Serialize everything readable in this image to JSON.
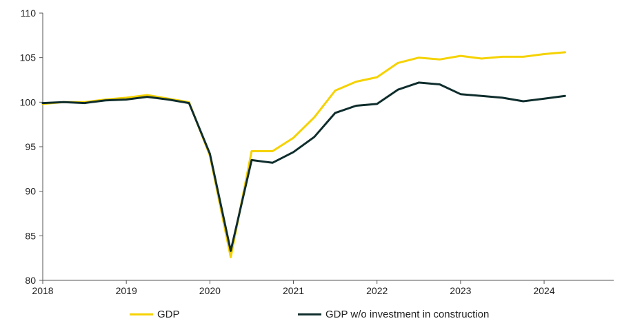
{
  "chart_data": {
    "type": "line",
    "title": "",
    "xlabel": "",
    "ylabel": "",
    "xlim": [
      2018.0,
      2024.833
    ],
    "ylim": [
      80,
      110
    ],
    "y_ticks": [
      80,
      85,
      90,
      95,
      100,
      105,
      110
    ],
    "x_ticks": [
      2018,
      2019,
      2020,
      2021,
      2022,
      2023,
      2024
    ],
    "x_tick_labels": [
      "2018",
      "2019",
      "2020",
      "2021",
      "2022",
      "2023",
      "2024"
    ],
    "grid": false,
    "legend_position": "bottom",
    "x": [
      2018.0,
      2018.25,
      2018.5,
      2018.75,
      2019.0,
      2019.25,
      2019.5,
      2019.75,
      2020.0,
      2020.25,
      2020.5,
      2020.75,
      2021.0,
      2021.25,
      2021.5,
      2021.75,
      2022.0,
      2022.25,
      2022.5,
      2022.75,
      2023.0,
      2023.25,
      2023.5,
      2023.75,
      2024.0,
      2024.25
    ],
    "series": [
      {
        "name": "GDP",
        "color": "#f5d200",
        "values": [
          99.8,
          100.0,
          100.0,
          100.3,
          100.5,
          100.8,
          100.4,
          100.0,
          94.0,
          82.6,
          94.5,
          94.5,
          96.0,
          98.3,
          101.3,
          102.3,
          102.8,
          104.4,
          105.0,
          104.8,
          105.2,
          104.9,
          105.1,
          105.1,
          105.4,
          105.6
        ]
      },
      {
        "name": "GDP w/o investment in construction",
        "color": "#0f2d2d",
        "values": [
          99.9,
          100.0,
          99.9,
          100.2,
          100.3,
          100.6,
          100.3,
          99.9,
          94.2,
          83.3,
          93.5,
          93.2,
          94.4,
          96.1,
          98.8,
          99.6,
          99.8,
          101.4,
          102.2,
          102.0,
          100.9,
          100.7,
          100.5,
          100.1,
          100.4,
          100.7
        ]
      }
    ]
  }
}
